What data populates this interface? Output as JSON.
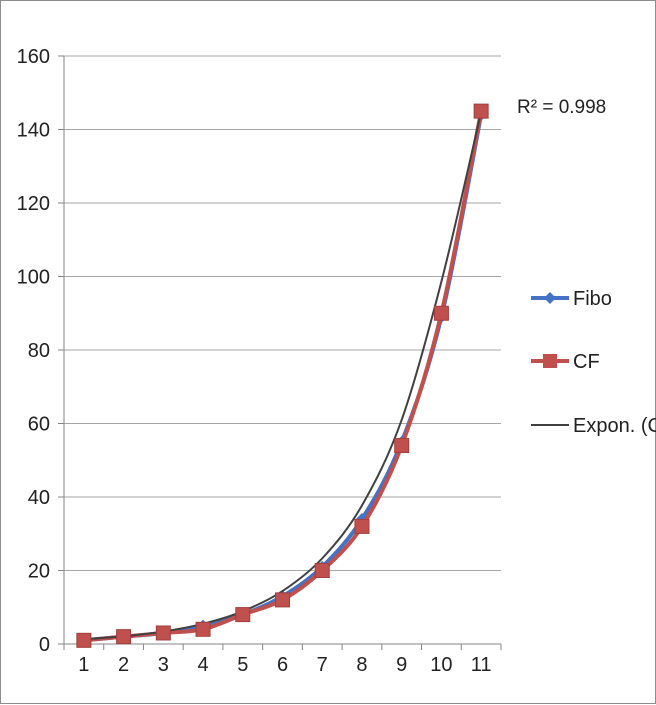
{
  "chart_data": {
    "type": "line",
    "title": "",
    "xlabel": "",
    "ylabel": "",
    "categories": [
      "1",
      "2",
      "3",
      "4",
      "5",
      "6",
      "7",
      "8",
      "9",
      "10",
      "11"
    ],
    "x": [
      1,
      2,
      3,
      4,
      5,
      6,
      7,
      8,
      9,
      10,
      11
    ],
    "ylim": [
      0,
      160
    ],
    "y_ticks": [
      "0",
      "20",
      "40",
      "60",
      "80",
      "100",
      "120",
      "140",
      "160"
    ],
    "grid": "horizontal",
    "legend_position": "right",
    "series": [
      {
        "name": "Fibo",
        "marker": "diamond",
        "color": "#4472c4",
        "values": [
          1,
          2,
          3,
          5,
          8,
          13,
          21,
          34,
          55,
          89,
          144
        ]
      },
      {
        "name": "CF",
        "marker": "square",
        "color": "#c0504d",
        "values": [
          1,
          2,
          3,
          4,
          8,
          12,
          20,
          32,
          54,
          90,
          145
        ]
      },
      {
        "name": "Expon. (CF)",
        "marker": "none",
        "color": "#404040",
        "trendline": "exponential",
        "values": [
          1.3,
          2.1,
          3.4,
          5.5,
          8.9,
          14.4,
          23.3,
          37.7,
          61,
          98.6,
          144.8
        ]
      }
    ],
    "annotations": [
      {
        "text": "R² = 0.998"
      }
    ]
  }
}
